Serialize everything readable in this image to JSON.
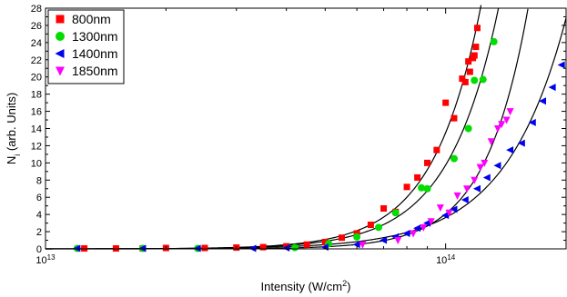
{
  "chart_data": {
    "type": "scatter",
    "title": "",
    "xlabel": "Intensity (W/cm",
    "xlabel_sup": "2",
    "xlabel_end": ")",
    "ylabel": "N",
    "ylabel_sub": "i",
    "ylabel_end": " (arb. Units)",
    "x_scale": "log",
    "xlim": [
      10000000000000.0,
      200000000000000.0
    ],
    "ylim": [
      0,
      28
    ],
    "y_ticks": [
      0,
      2,
      4,
      6,
      8,
      10,
      12,
      14,
      16,
      18,
      20,
      22,
      24,
      26,
      28
    ],
    "x_tick_labels": [
      {
        "value": 10000000000000.0,
        "base": "10",
        "exp": "13"
      },
      {
        "value": 100000000000000.0,
        "base": "10",
        "exp": "14"
      }
    ],
    "legend_position": "top-left",
    "fit_curves": true,
    "series": [
      {
        "name": "800nm",
        "color": "#ff0000",
        "marker": "square",
        "x": [
          12500000000000.0,
          15000000000000.0,
          17500000000000.0,
          20000000000000.0,
          25000000000000.0,
          30000000000000.0,
          35000000000000.0,
          40000000000000.0,
          45000000000000.0,
          50000000000000.0,
          55000000000000.0,
          60000000000000.0,
          65000000000000.0,
          70000000000000.0,
          75000000000000.0,
          80000000000000.0,
          85000000000000.0,
          90000000000000.0,
          95000000000000.0,
          100000000000000.0,
          105000000000000.0,
          110000000000000.0,
          112000000000000.0,
          114000000000000.0,
          115000000000000.0,
          117000000000000.0,
          118000000000000.0,
          119000000000000.0,
          120000000000000.0
        ],
        "y": [
          0.05,
          0.05,
          0.05,
          0.1,
          0.1,
          0.15,
          0.2,
          0.3,
          0.5,
          0.8,
          1.3,
          1.8,
          2.8,
          4.7,
          4.3,
          7.2,
          8.3,
          10.0,
          11.5,
          17.0,
          15.2,
          19.8,
          19.4,
          21.8,
          20.6,
          22.2,
          22.5,
          23.5,
          25.7
        ]
      },
      {
        "name": "1300nm",
        "color": "#00dd00",
        "marker": "circle",
        "x": [
          12000000000000.0,
          17500000000000.0,
          24000000000000.0,
          42000000000000.0,
          51000000000000.0,
          60000000000000.0,
          68000000000000.0,
          75000000000000.0,
          87000000000000.0,
          90000000000000.0,
          105000000000000.0,
          114000000000000.0,
          118000000000000.0,
          124000000000000.0,
          132000000000000.0
        ],
        "y": [
          0.05,
          0.05,
          0.05,
          0.15,
          0.6,
          1.4,
          2.5,
          4.2,
          7.1,
          7.0,
          10.5,
          14.0,
          19.6,
          19.7,
          24.1
        ]
      },
      {
        "name": "1400nm",
        "color": "#0000ee",
        "marker": "triangle-left",
        "x": [
          12000000000000.0,
          17500000000000.0,
          24000000000000.0,
          33000000000000.0,
          40000000000000.0,
          50000000000000.0,
          60000000000000.0,
          70000000000000.0,
          75000000000000.0,
          80000000000000.0,
          85000000000000.0,
          90000000000000.0,
          100000000000000.0,
          105000000000000.0,
          112000000000000.0,
          120000000000000.0,
          127000000000000.0,
          135000000000000.0,
          145000000000000.0,
          155000000000000.0,
          165000000000000.0,
          175000000000000.0,
          185000000000000.0,
          195000000000000.0
        ],
        "y": [
          0.05,
          0.05,
          0.05,
          0.05,
          0.1,
          0.2,
          0.5,
          1.0,
          1.4,
          1.8,
          2.4,
          3.0,
          3.9,
          4.6,
          5.7,
          7.0,
          8.3,
          9.7,
          11.5,
          12.3,
          14.7,
          17.2,
          18.8,
          21.4
        ]
      },
      {
        "name": "1850nm",
        "color": "#ff00ff",
        "marker": "triangle-down",
        "x": [
          62000000000000.0,
          76000000000000.0,
          83000000000000.0,
          88000000000000.0,
          92000000000000.0,
          97000000000000.0,
          102000000000000.0,
          107000000000000.0,
          113000000000000.0,
          118000000000000.0,
          122000000000000.0,
          125000000000000.0,
          130000000000000.0,
          135000000000000.0,
          138000000000000.0,
          142000000000000.0,
          145000000000000.0
        ],
        "y": [
          0.5,
          1.0,
          1.8,
          2.5,
          3.2,
          4.8,
          4.2,
          6.2,
          7.0,
          8.0,
          9.5,
          10.0,
          12.5,
          14.0,
          14.5,
          15.0,
          16.0
        ]
      }
    ]
  }
}
